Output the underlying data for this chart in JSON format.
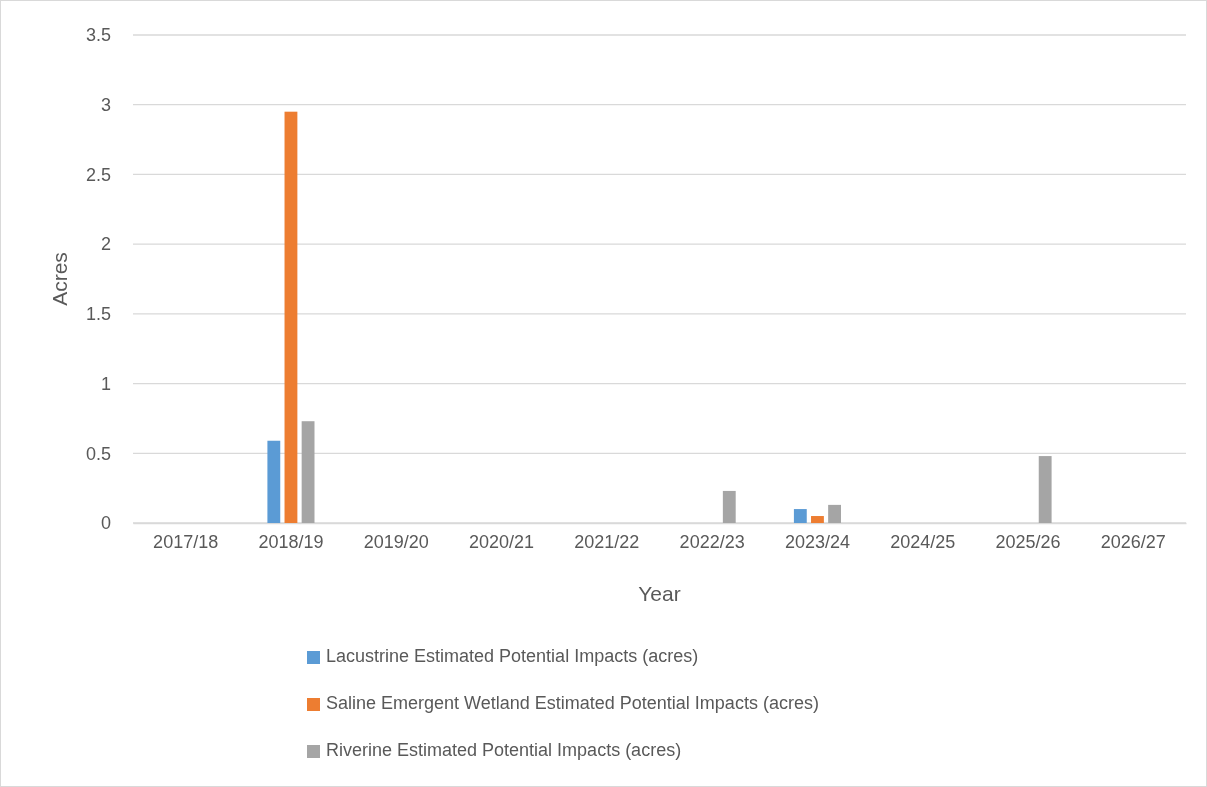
{
  "chart_data": {
    "type": "bar",
    "xlabel": "Year",
    "ylabel": "Acres",
    "categories": [
      "2017/18",
      "2018/19",
      "2019/20",
      "2020/21",
      "2021/22",
      "2022/23",
      "2023/24",
      "2024/25",
      "2025/26",
      "2026/27"
    ],
    "series": [
      {
        "name": "Lacustrine Estimated Potential Impacts (acres)",
        "color": "#5b9bd5",
        "values": [
          null,
          0.59,
          null,
          null,
          null,
          null,
          0.1,
          null,
          null,
          null
        ]
      },
      {
        "name": "Saline Emergent Wetland Estimated Potential Impacts (acres)",
        "color": "#ed7d31",
        "values": [
          null,
          2.95,
          null,
          null,
          null,
          null,
          0.05,
          null,
          null,
          null
        ]
      },
      {
        "name": "Riverine Estimated Potential Impacts (acres)",
        "color": "#a5a5a5",
        "values": [
          null,
          0.73,
          null,
          null,
          null,
          0.23,
          0.13,
          null,
          0.48,
          null
        ]
      }
    ],
    "ylim": [
      0,
      3.5
    ],
    "yticks": [
      0,
      0.5,
      1,
      1.5,
      2,
      2.5,
      3,
      3.5
    ],
    "grid": "y",
    "legend": "bottom"
  }
}
